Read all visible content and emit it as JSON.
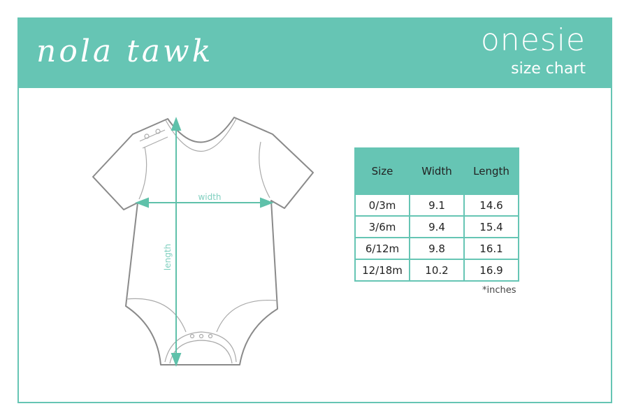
{
  "header": {
    "brand": "nola tawk",
    "title": "onesie",
    "subtitle": "size chart"
  },
  "diagram": {
    "width_label": "width",
    "length_label": "length"
  },
  "table": {
    "columns": [
      "Size",
      "Width",
      "Length"
    ],
    "rows": [
      [
        "0/3m",
        "9.1",
        "14.6"
      ],
      [
        "3/6m",
        "9.4",
        "15.4"
      ],
      [
        "6/12m",
        "9.8",
        "16.1"
      ],
      [
        "12/18m",
        "10.2",
        "16.9"
      ]
    ],
    "note": "*inches"
  },
  "colors": {
    "accent": "#66c5b4",
    "outline": "#8a8a8a"
  }
}
